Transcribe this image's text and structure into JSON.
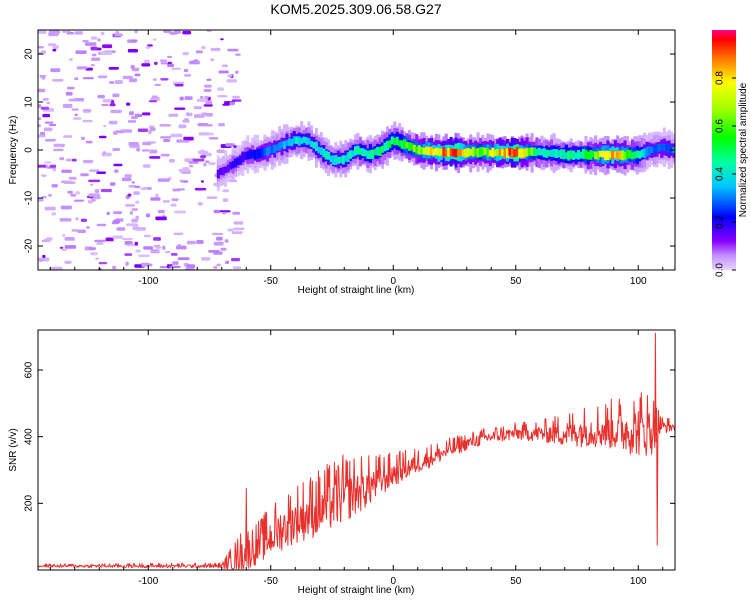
{
  "title": "KOM5.2025.309.06.58.G27",
  "chart_data": [
    {
      "type": "heatmap",
      "name": "spectrogram",
      "xlabel": "Height of straight line (km)",
      "ylabel": "Frequency (Hz)",
      "xlim": [
        -145,
        115
      ],
      "ylim": [
        -25,
        25
      ],
      "xticks": [
        -100,
        -50,
        0,
        50,
        100
      ],
      "yticks": [
        -20,
        -10,
        0,
        10,
        20
      ],
      "colorbar": {
        "label": "Normalized spectral amplitude",
        "range": [
          0,
          1
        ],
        "ticks": [
          0.0,
          0.2,
          0.4,
          0.6,
          0.8
        ]
      },
      "ridge": {
        "x": [
          -72,
          -65,
          -60,
          -55,
          -50,
          -45,
          -40,
          -35,
          -30,
          -25,
          -20,
          -15,
          -10,
          -5,
          0,
          5,
          10,
          20,
          30,
          40,
          50,
          60,
          70,
          80,
          90,
          100,
          105,
          110,
          115
        ],
        "freq": [
          -5,
          -3,
          -1,
          -1,
          0,
          1,
          2,
          2,
          0,
          -2,
          -2,
          0,
          -1,
          0,
          2,
          1,
          0,
          -0.5,
          -0.5,
          -0.5,
          -0.5,
          -0.5,
          -1,
          -1,
          -1,
          -1,
          0,
          0.5,
          0
        ]
      },
      "ridge_amplitude": {
        "x": [
          -72,
          -60,
          -40,
          -20,
          0,
          10,
          25,
          35,
          50,
          60,
          75,
          90,
          105,
          115
        ],
        "amp": [
          0.15,
          0.2,
          0.4,
          0.4,
          0.5,
          0.65,
          0.95,
          0.6,
          0.95,
          0.45,
          0.45,
          0.85,
          0.3,
          0.3
        ]
      },
      "noise_region": [
        -145,
        -65
      ]
    },
    {
      "type": "line",
      "name": "snr",
      "xlabel": "Height of straight line (km)",
      "ylabel": "SNR (v/v)",
      "xlim": [
        -145,
        115
      ],
      "ylim": [
        0,
        720
      ],
      "xticks": [
        -100,
        -50,
        0,
        50,
        100
      ],
      "yticks": [
        200,
        400,
        600
      ],
      "color": "#e8302c",
      "envelope": {
        "x": [
          -145,
          -70,
          -62,
          -55,
          -50,
          -40,
          -30,
          -20,
          -10,
          0,
          10,
          20,
          30,
          40,
          50,
          60,
          70,
          80,
          90,
          100,
          105,
          110,
          115
        ],
        "mean": [
          12,
          12,
          40,
          70,
          100,
          150,
          180,
          220,
          250,
          290,
          320,
          350,
          380,
          400,
          410,
          410,
          410,
          420,
          420,
          420,
          420,
          430,
          430
        ],
        "amp": [
          4,
          6,
          50,
          50,
          60,
          70,
          80,
          80,
          60,
          40,
          30,
          25,
          20,
          20,
          20,
          25,
          40,
          50,
          60,
          80,
          80,
          20,
          15
        ]
      },
      "spikes": [
        {
          "x": -60,
          "y": 245
        },
        {
          "x": 107,
          "y": 710
        },
        {
          "x": 107.8,
          "y": 75
        },
        {
          "x": 109,
          "y": 460
        }
      ]
    }
  ]
}
